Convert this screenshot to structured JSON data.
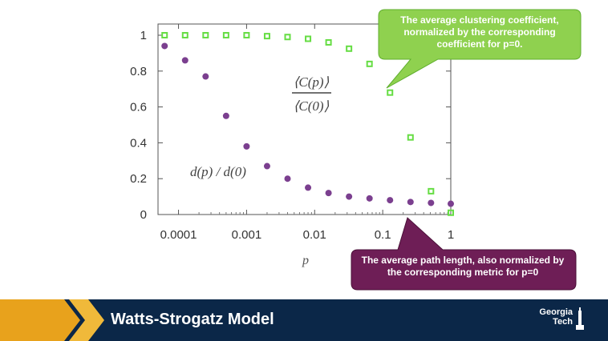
{
  "chart_data": {
    "type": "scatter",
    "x_scale": "log",
    "xlabel": "p",
    "ylabel": "",
    "xlim": [
      5e-05,
      1
    ],
    "ylim": [
      0,
      1
    ],
    "x_ticks": [
      0.0001,
      0.001,
      0.01,
      0.1,
      1
    ],
    "x_tick_labels": [
      "0.0001",
      "0.001",
      "0.01",
      "0.1",
      "1"
    ],
    "y_ticks": [
      0,
      0.2,
      0.4,
      0.6,
      0.8,
      1
    ],
    "y_tick_labels": [
      "0",
      "0.2",
      "0.4",
      "0.6",
      "0.8",
      "1"
    ],
    "series": [
      {
        "marker": "hollow-square",
        "color": "#66dd44",
        "x": [
          6.25e-05,
          0.000125,
          0.00025,
          0.0005,
          0.001,
          0.002,
          0.004,
          0.008,
          0.016,
          0.032,
          0.064,
          0.128,
          0.256,
          0.512,
          1
        ],
        "y": [
          1.0,
          1.0,
          1.0,
          1.0,
          1.0,
          0.995,
          0.99,
          0.98,
          0.96,
          0.925,
          0.84,
          0.68,
          0.43,
          0.13,
          0.01
        ]
      },
      {
        "marker": "filled-circle",
        "color": "#7b3f8f",
        "x": [
          6.25e-05,
          0.000125,
          0.00025,
          0.0005,
          0.001,
          0.002,
          0.004,
          0.008,
          0.016,
          0.032,
          0.064,
          0.128,
          0.256,
          0.512,
          1
        ],
        "y": [
          0.94,
          0.86,
          0.77,
          0.55,
          0.38,
          0.27,
          0.2,
          0.15,
          0.12,
          0.1,
          0.09,
          0.08,
          0.07,
          0.065,
          0.06
        ]
      }
    ],
    "annotations": {
      "green_ratio_numerator": "⟨C(p)⟩",
      "green_ratio_denominator": "⟨C(0)⟩",
      "purple_ratio": "d(p) / d(0)"
    }
  },
  "callouts": {
    "green": "The average clustering coefficient, normalized by the corresponding coefficient for p=0.",
    "purple": "The average path length, also normalized by the corresponding metric for p=0"
  },
  "colors": {
    "green_series": "#66dd44",
    "purple_series": "#7b3f8f",
    "green_callout": "#8fd14f",
    "purple_callout": "#6e1e56",
    "footer": "#0b2748",
    "footer_accent": "#e8a21c"
  },
  "footer": {
    "title": "Watts-Strogatz Model",
    "logo_line1": "Georgia",
    "logo_line2": "Tech"
  }
}
